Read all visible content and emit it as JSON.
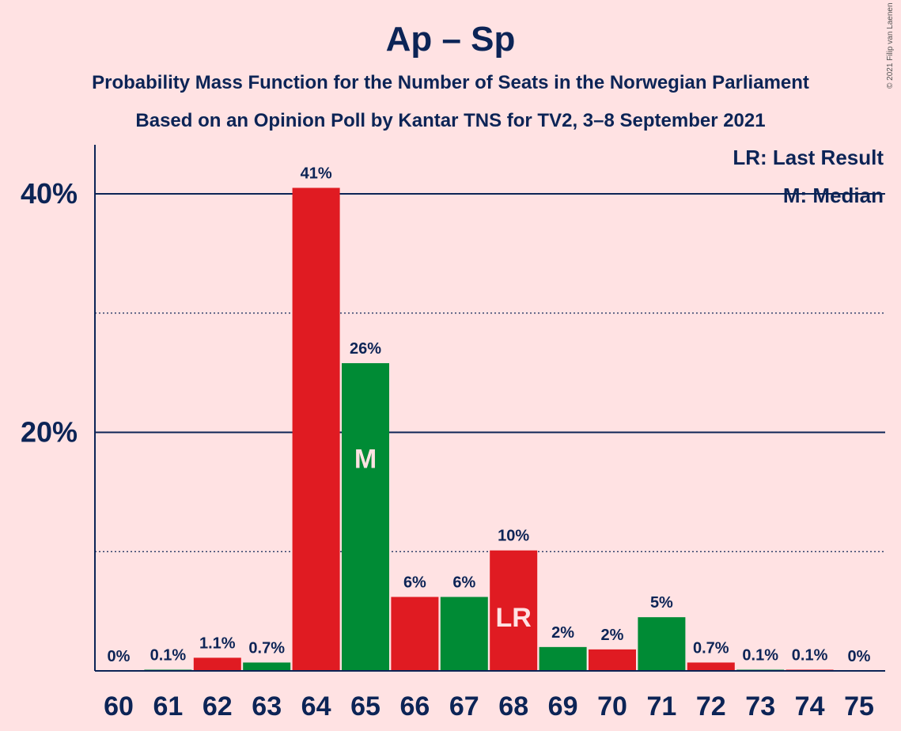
{
  "title": "Ap – Sp",
  "subtitle_1": "Probability Mass Function for the Number of Seats in the Norwegian Parliament",
  "subtitle_2": "Based on an Opinion Poll by Kantar TNS for TV2, 3–8 September 2021",
  "copyright": "© 2021 Filip van Laenen",
  "legend": {
    "last_result": "LR: Last Result",
    "median": "M: Median"
  },
  "colors": {
    "background": "#ffe2e3",
    "text": "#0c2456",
    "red": "#e01b22",
    "green": "#008b35"
  },
  "chart_data": {
    "type": "bar",
    "categories": [
      "60",
      "61",
      "62",
      "63",
      "64",
      "65",
      "66",
      "67",
      "68",
      "69",
      "70",
      "71",
      "72",
      "73",
      "74",
      "75"
    ],
    "values": [
      0,
      0.1,
      1.1,
      0.7,
      40.5,
      25.8,
      6.2,
      6.2,
      10.1,
      2.0,
      1.8,
      4.5,
      0.7,
      0.1,
      0.1,
      0
    ],
    "data_labels": [
      "0%",
      "0.1%",
      "1.1%",
      "0.7%",
      "41%",
      "26%",
      "6%",
      "6%",
      "10%",
      "2%",
      "2%",
      "5%",
      "0.7%",
      "0.1%",
      "0.1%",
      "0%"
    ],
    "bar_colors": [
      "red",
      "green",
      "red",
      "green",
      "red",
      "green",
      "red",
      "green",
      "red",
      "green",
      "red",
      "green",
      "red",
      "green",
      "red",
      "green"
    ],
    "y_tick_labels": [
      {
        "value": 20,
        "label": "20%"
      },
      {
        "value": 40,
        "label": "40%"
      }
    ],
    "ylim": [
      0,
      44
    ],
    "solid_gridlines": [
      20,
      40
    ],
    "dotted_gridlines": [
      10,
      30
    ],
    "bar_markers": [
      {
        "category": "65",
        "label": "M"
      },
      {
        "category": "68",
        "label": "LR"
      }
    ],
    "legend_position": "top-right"
  }
}
